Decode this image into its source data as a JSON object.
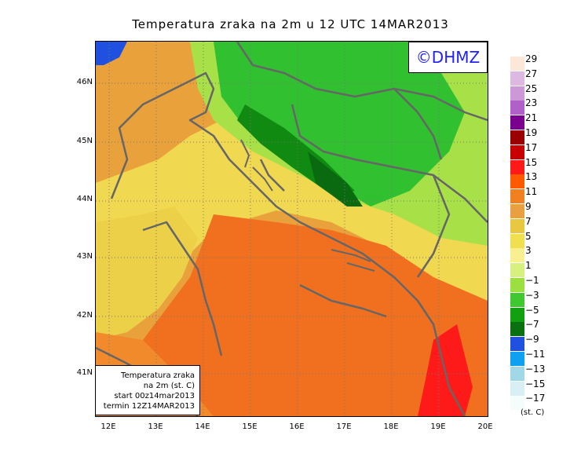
{
  "title": "Temperatura zraka na 2m u 12 UTC 14MAR2013",
  "logo": "©DHMZ",
  "infobox": {
    "line1": "Temperatura zraka",
    "line2": "na 2m (st. C)",
    "line3": "start 00z14mar2013",
    "line4": "termin 12Z14MAR2013"
  },
  "y_ticks": [
    "46N",
    "45N",
    "44N",
    "43N",
    "42N",
    "41N"
  ],
  "x_ticks": [
    "12E",
    "13E",
    "14E",
    "15E",
    "16E",
    "17E",
    "18E",
    "19E",
    "20E"
  ],
  "legend": {
    "labels": [
      "29",
      "27",
      "25",
      "23",
      "21",
      "19",
      "17",
      "15",
      "13",
      "11",
      "9",
      "7",
      "5",
      "3",
      "1",
      "−1",
      "−3",
      "−5",
      "−7",
      "−9",
      "−11",
      "−13",
      "−15",
      "−17"
    ],
    "colors": [
      "#fbe8d8",
      "#ddb8e0",
      "#cc98d8",
      "#b060c8",
      "#7a0090",
      "#9a0000",
      "#c80000",
      "#ff1a1a",
      "#ff5a00",
      "#f08020",
      "#e8a040",
      "#e8c840",
      "#f0e050",
      "#f8f090",
      "#d8f080",
      "#9ae040",
      "#40c830",
      "#10a010",
      "#0a7010",
      "#2050e0",
      "#10a0f0",
      "#a0d8e8",
      "#d8f0f4",
      "#f4fcfc"
    ],
    "units": "(st. C)"
  },
  "colors": {
    "warm_orange": "#f07020",
    "max_red": "#ff1a1a",
    "cold_green": "#10a010",
    "cold_blue": "#2050e0"
  }
}
